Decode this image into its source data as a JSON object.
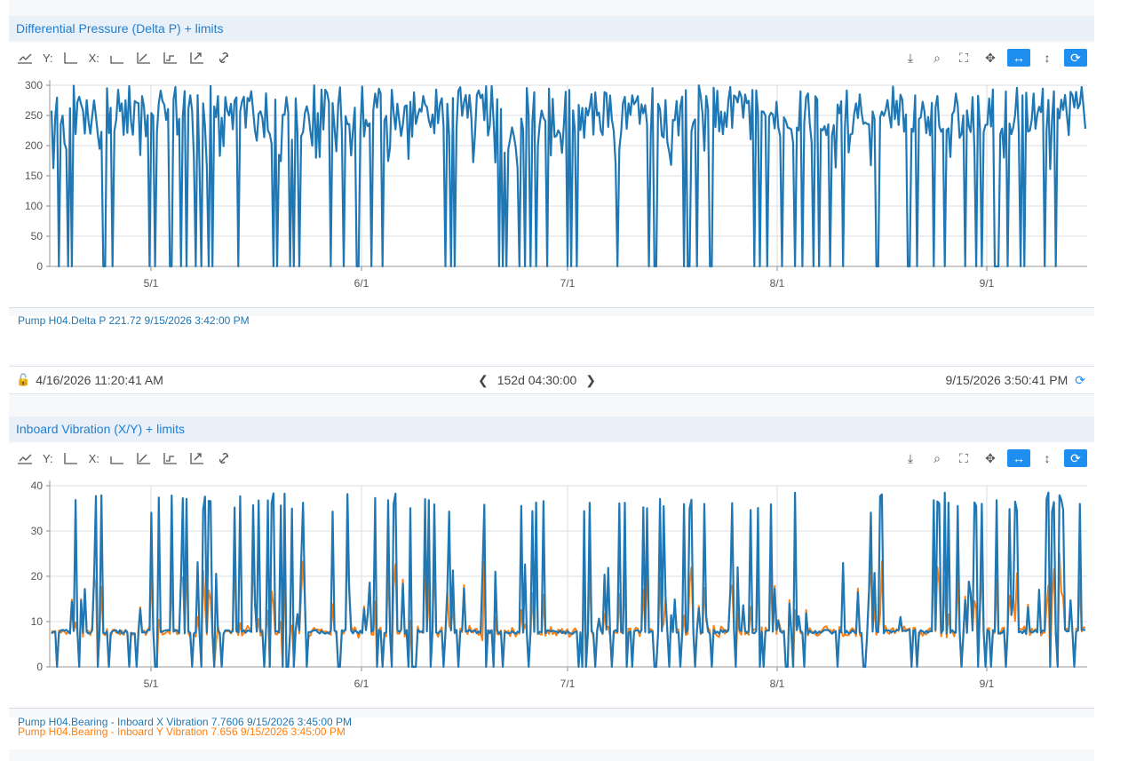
{
  "panels": [
    {
      "title": "Differential Pressure (Delta P) + limits",
      "toolbar": {
        "y_label": "Y:",
        "x_label": "X:"
      },
      "legend": [
        {
          "text": "Pump H04.Delta P 221.72  9/15/2026 3:42:00 PM",
          "color": "#1f77b4"
        }
      ]
    },
    {
      "title": "Inboard Vibration (X/Y) + limits",
      "toolbar": {
        "y_label": "Y:",
        "x_label": "X:"
      },
      "legend": [
        {
          "text": "Pump H04.Bearing - Inboard X Vibration 7.7606  9/15/2026 3:45:00 PM",
          "color": "#1f77b4"
        },
        {
          "text": "Pump H04.Bearing - Inboard Y Vibration 7.656    9/15/2026 3:45:00 PM",
          "color": "#ff7f0e"
        }
      ]
    }
  ],
  "time_range": {
    "start": "4/16/2026 11:20:41 AM",
    "duration": "152d 04:30:00",
    "end": "9/15/2026 3:50:41 PM"
  },
  "icons": {
    "chart_type": "chart-type-icon",
    "y_axis": "y-axis-icon",
    "x_axis": "x-axis-icon",
    "scatter_axis": "xy-axis-icon",
    "step": "step-icon",
    "expand_axis": "expand-axis-icon",
    "link": "link-icon",
    "download": "download-icon",
    "zoom_select": "zoom-select-icon",
    "fullscreen": "fullscreen-icon",
    "pan": "pan-icon",
    "zoom_x": "zoom-x-icon",
    "zoom_y": "zoom-y-icon",
    "refresh": "refresh-icon",
    "lock": "unlock-icon"
  },
  "colors": {
    "series_1": "#1f77b4",
    "series_2": "#ff7f0e",
    "accent": "#1f8ef1",
    "title": "#1f7fd1"
  },
  "chart_data": [
    {
      "type": "line",
      "title": "Differential Pressure (Delta P) + limits",
      "x_start": "2026-04-16",
      "x_end": "2026-09-15",
      "x_ticks": [
        "5/1",
        "6/1",
        "7/1",
        "8/1",
        "9/1"
      ],
      "y_ticks": [
        0,
        50,
        100,
        150,
        200,
        250,
        300
      ],
      "ylim": [
        0,
        300
      ],
      "grid": true,
      "series": [
        {
          "name": "Pump H04.Delta P",
          "color": "#1f77b4",
          "y_min": 0,
          "y_max": 300,
          "last_value": 221.72,
          "sampling": "hourly, cycling between ~0 and ~300"
        }
      ]
    },
    {
      "type": "line",
      "title": "Inboard Vibration (X/Y) + limits",
      "x_start": "2026-04-16",
      "x_end": "2026-09-15",
      "x_ticks": [
        "5/1",
        "6/1",
        "7/1",
        "8/1",
        "9/1"
      ],
      "y_ticks": [
        0,
        10,
        20,
        30,
        40
      ],
      "ylim": [
        0,
        40
      ],
      "grid": true,
      "series": [
        {
          "name": "Pump H04.Bearing - Inboard X Vibration",
          "color": "#1f77b4",
          "y_min": 0,
          "y_max": 38,
          "baseline": 7.7,
          "last_value": 7.7606
        },
        {
          "name": "Pump H04.Bearing - Inboard Y Vibration",
          "color": "#ff7f0e",
          "y_min": 0,
          "y_max": 27,
          "baseline": 7.7,
          "last_value": 7.656
        }
      ]
    }
  ]
}
